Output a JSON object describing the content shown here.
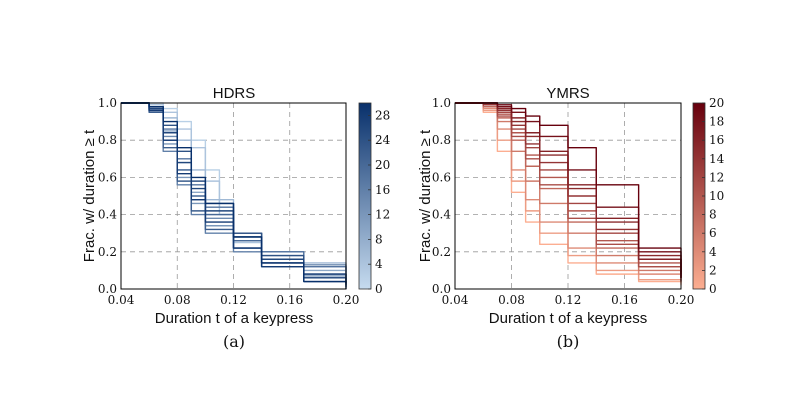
{
  "chart_data": [
    {
      "type": "line",
      "title": "HDRS",
      "xlabel": "Duration t of a keypress",
      "ylabel": "Frac. w/ duration ≥ t",
      "xlim": [
        0.04,
        0.2
      ],
      "ylim": [
        0.0,
        1.0
      ],
      "xticks": [
        "0.04",
        "0.08",
        "0.12",
        "0.16",
        "0.20"
      ],
      "yticks": [
        "0.0",
        "0.2",
        "0.4",
        "0.6",
        "0.8",
        "1.0"
      ],
      "grid": true,
      "colormap": "Blues",
      "colorbar": {
        "range": [
          0,
          30
        ],
        "ticks": [
          "0",
          "4",
          "8",
          "12",
          "16",
          "20",
          "24",
          "28"
        ]
      },
      "color_low": "#c6dbef",
      "color_high": "#08306b",
      "sublabel": "(a)",
      "series": [
        {
          "value": 2,
          "x": [
            0.04,
            0.06,
            0.07,
            0.08,
            0.09,
            0.1,
            0.11,
            0.12,
            0.14,
            0.2
          ],
          "y": [
            1.0,
            1.0,
            0.97,
            0.9,
            0.8,
            0.64,
            0.44,
            0.28,
            0.12,
            0.05
          ]
        },
        {
          "value": 4,
          "x": [
            0.04,
            0.06,
            0.07,
            0.08,
            0.09,
            0.1,
            0.11,
            0.12,
            0.14,
            0.2
          ],
          "y": [
            1.0,
            0.99,
            0.95,
            0.86,
            0.76,
            0.58,
            0.4,
            0.25,
            0.12,
            0.08
          ]
        },
        {
          "value": 6,
          "x": [
            0.04,
            0.06,
            0.07,
            0.08,
            0.09,
            0.1,
            0.12,
            0.14,
            0.17,
            0.2
          ],
          "y": [
            1.0,
            0.98,
            0.92,
            0.8,
            0.64,
            0.48,
            0.3,
            0.2,
            0.14,
            0.1
          ]
        },
        {
          "value": 9,
          "x": [
            0.04,
            0.06,
            0.07,
            0.08,
            0.09,
            0.1,
            0.12,
            0.14,
            0.17,
            0.2
          ],
          "y": [
            1.0,
            0.97,
            0.85,
            0.68,
            0.52,
            0.4,
            0.28,
            0.18,
            0.1,
            0.06
          ]
        },
        {
          "value": 12,
          "x": [
            0.04,
            0.06,
            0.07,
            0.08,
            0.09,
            0.1,
            0.12,
            0.14,
            0.17,
            0.2
          ],
          "y": [
            1.0,
            0.96,
            0.78,
            0.6,
            0.46,
            0.34,
            0.22,
            0.14,
            0.07,
            0.04
          ]
        },
        {
          "value": 14,
          "x": [
            0.04,
            0.06,
            0.07,
            0.08,
            0.09,
            0.1,
            0.12,
            0.14,
            0.17,
            0.2
          ],
          "y": [
            1.0,
            0.96,
            0.82,
            0.64,
            0.48,
            0.38,
            0.28,
            0.2,
            0.13,
            0.09
          ]
        },
        {
          "value": 16,
          "x": [
            0.04,
            0.06,
            0.07,
            0.08,
            0.09,
            0.1,
            0.12,
            0.14,
            0.17,
            0.2
          ],
          "y": [
            1.0,
            0.95,
            0.74,
            0.56,
            0.4,
            0.3,
            0.2,
            0.12,
            0.06,
            0.03
          ]
        },
        {
          "value": 18,
          "x": [
            0.04,
            0.06,
            0.07,
            0.08,
            0.09,
            0.1,
            0.12,
            0.14,
            0.17,
            0.2
          ],
          "y": [
            1.0,
            0.97,
            0.86,
            0.7,
            0.56,
            0.44,
            0.3,
            0.2,
            0.12,
            0.07
          ]
        },
        {
          "value": 20,
          "x": [
            0.04,
            0.06,
            0.07,
            0.08,
            0.09,
            0.1,
            0.12,
            0.14,
            0.17,
            0.2
          ],
          "y": [
            1.0,
            0.96,
            0.8,
            0.64,
            0.5,
            0.4,
            0.26,
            0.16,
            0.08,
            0.05
          ]
        },
        {
          "value": 22,
          "x": [
            0.04,
            0.06,
            0.07,
            0.08,
            0.09,
            0.1,
            0.12,
            0.14,
            0.17,
            0.2
          ],
          "y": [
            1.0,
            0.95,
            0.76,
            0.58,
            0.42,
            0.32,
            0.22,
            0.14,
            0.08,
            0.04
          ]
        },
        {
          "value": 24,
          "x": [
            0.04,
            0.06,
            0.07,
            0.08,
            0.09,
            0.1,
            0.12,
            0.14,
            0.17,
            0.2
          ],
          "y": [
            1.0,
            0.98,
            0.88,
            0.74,
            0.58,
            0.46,
            0.3,
            0.18,
            0.08,
            0.03
          ]
        },
        {
          "value": 26,
          "x": [
            0.04,
            0.06,
            0.07,
            0.08,
            0.09,
            0.1,
            0.12,
            0.14,
            0.17,
            0.2
          ],
          "y": [
            1.0,
            0.97,
            0.84,
            0.68,
            0.54,
            0.42,
            0.28,
            0.16,
            0.06,
            0.02
          ]
        },
        {
          "value": 28,
          "x": [
            0.04,
            0.06,
            0.07,
            0.08,
            0.09,
            0.1,
            0.12,
            0.14,
            0.17,
            0.2
          ],
          "y": [
            1.0,
            0.96,
            0.8,
            0.62,
            0.48,
            0.36,
            0.22,
            0.12,
            0.04,
            0.01
          ]
        },
        {
          "value": 30,
          "x": [
            0.04,
            0.06,
            0.07,
            0.08,
            0.09,
            0.1,
            0.12,
            0.14,
            0.17,
            0.2
          ],
          "y": [
            1.0,
            0.98,
            0.9,
            0.76,
            0.6,
            0.46,
            0.28,
            0.14,
            0.04,
            0.0
          ]
        }
      ]
    },
    {
      "type": "line",
      "title": "YMRS",
      "xlabel": "Duration t of a keypress",
      "ylabel": "Frac. w/ duration ≥ t",
      "xlim": [
        0.04,
        0.2
      ],
      "ylim": [
        0.0,
        1.0
      ],
      "xticks": [
        "0.04",
        "0.08",
        "0.12",
        "0.16",
        "0.20"
      ],
      "yticks": [
        "0.0",
        "0.2",
        "0.4",
        "0.6",
        "0.8",
        "1.0"
      ],
      "grid": true,
      "colormap": "Reds",
      "colorbar": {
        "range": [
          0,
          20
        ],
        "ticks": [
          "0",
          "2",
          "4",
          "6",
          "8",
          "10",
          "12",
          "14",
          "16",
          "18",
          "20"
        ]
      },
      "color_low": "#fcae91",
      "color_high": "#67000d",
      "sublabel": "(b)",
      "series": [
        {
          "value": 0,
          "x": [
            0.04,
            0.06,
            0.07,
            0.08,
            0.09,
            0.1,
            0.12,
            0.14,
            0.17,
            0.2
          ],
          "y": [
            1.0,
            0.95,
            0.74,
            0.52,
            0.36,
            0.24,
            0.14,
            0.08,
            0.04,
            0.02
          ]
        },
        {
          "value": 2,
          "x": [
            0.04,
            0.06,
            0.07,
            0.08,
            0.09,
            0.1,
            0.12,
            0.14,
            0.17,
            0.2
          ],
          "y": [
            1.0,
            0.96,
            0.8,
            0.58,
            0.42,
            0.3,
            0.18,
            0.1,
            0.05,
            0.03
          ]
        },
        {
          "value": 4,
          "x": [
            0.04,
            0.06,
            0.07,
            0.08,
            0.09,
            0.1,
            0.12,
            0.14,
            0.17,
            0.2
          ],
          "y": [
            1.0,
            0.97,
            0.86,
            0.64,
            0.48,
            0.36,
            0.22,
            0.14,
            0.08,
            0.05
          ]
        },
        {
          "value": 6,
          "x": [
            0.04,
            0.06,
            0.07,
            0.08,
            0.09,
            0.1,
            0.12,
            0.14,
            0.17,
            0.2
          ],
          "y": [
            1.0,
            0.98,
            0.9,
            0.74,
            0.58,
            0.46,
            0.3,
            0.18,
            0.1,
            0.06
          ]
        },
        {
          "value": 8,
          "x": [
            0.04,
            0.06,
            0.07,
            0.08,
            0.09,
            0.1,
            0.12,
            0.14,
            0.17,
            0.2
          ],
          "y": [
            1.0,
            0.98,
            0.92,
            0.8,
            0.66,
            0.54,
            0.36,
            0.22,
            0.12,
            0.07
          ]
        },
        {
          "value": 10,
          "x": [
            0.04,
            0.06,
            0.07,
            0.08,
            0.09,
            0.1,
            0.12,
            0.14,
            0.17,
            0.2
          ],
          "y": [
            1.0,
            0.99,
            0.94,
            0.84,
            0.72,
            0.6,
            0.42,
            0.26,
            0.14,
            0.08
          ]
        },
        {
          "value": 11,
          "x": [
            0.04,
            0.06,
            0.07,
            0.08,
            0.09,
            0.1,
            0.12,
            0.14,
            0.17,
            0.2
          ],
          "y": [
            1.0,
            0.99,
            0.93,
            0.82,
            0.7,
            0.56,
            0.38,
            0.24,
            0.12,
            0.06
          ]
        },
        {
          "value": 12,
          "x": [
            0.04,
            0.06,
            0.07,
            0.08,
            0.09,
            0.1,
            0.12,
            0.14,
            0.17,
            0.2
          ],
          "y": [
            1.0,
            0.99,
            0.95,
            0.86,
            0.76,
            0.64,
            0.46,
            0.3,
            0.16,
            0.09
          ]
        },
        {
          "value": 14,
          "x": [
            0.04,
            0.06,
            0.07,
            0.08,
            0.09,
            0.1,
            0.12,
            0.14,
            0.17,
            0.2
          ],
          "y": [
            1.0,
            0.99,
            0.96,
            0.88,
            0.78,
            0.68,
            0.5,
            0.32,
            0.16,
            0.08
          ]
        },
        {
          "value": 15,
          "x": [
            0.04,
            0.06,
            0.07,
            0.08,
            0.09,
            0.1,
            0.12,
            0.14,
            0.17,
            0.2
          ],
          "y": [
            1.0,
            1.0,
            0.97,
            0.9,
            0.82,
            0.72,
            0.54,
            0.36,
            0.18,
            0.09
          ]
        },
        {
          "value": 16,
          "x": [
            0.04,
            0.06,
            0.07,
            0.08,
            0.09,
            0.1,
            0.12,
            0.14,
            0.17,
            0.2
          ],
          "y": [
            1.0,
            1.0,
            0.97,
            0.92,
            0.84,
            0.74,
            0.56,
            0.38,
            0.16,
            0.06
          ]
        },
        {
          "value": 18,
          "x": [
            0.04,
            0.06,
            0.07,
            0.08,
            0.09,
            0.1,
            0.12,
            0.14,
            0.17,
            0.2
          ],
          "y": [
            1.0,
            1.0,
            0.98,
            0.95,
            0.9,
            0.82,
            0.64,
            0.44,
            0.2,
            0.06
          ]
        },
        {
          "value": 20,
          "x": [
            0.04,
            0.06,
            0.07,
            0.08,
            0.09,
            0.1,
            0.12,
            0.14,
            0.17,
            0.2
          ],
          "y": [
            1.0,
            1.0,
            0.99,
            0.97,
            0.93,
            0.88,
            0.76,
            0.56,
            0.22,
            0.04
          ]
        }
      ]
    }
  ]
}
